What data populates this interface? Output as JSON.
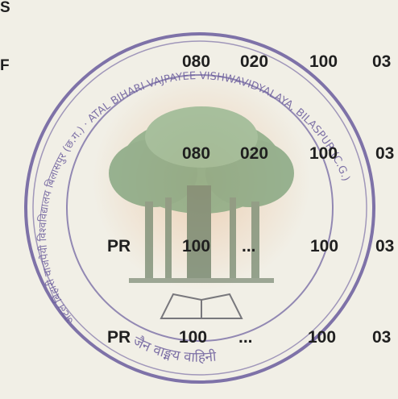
{
  "document": {
    "edge_marks": {
      "top_left": "S",
      "left": "F"
    },
    "rows": [
      {
        "col1": "",
        "col2": "080",
        "col3": "020",
        "col4": "100",
        "col5": "03"
      },
      {
        "col1": "",
        "col2": "080",
        "col3": "020",
        "col4": "100",
        "col5": "03"
      },
      {
        "col1": "PR",
        "col2": "100",
        "col3": "...",
        "col4": "100",
        "col5": "03"
      },
      {
        "col1": "PR",
        "col2": "100",
        "col3": "...",
        "col4": "100",
        "col5": "03"
      }
    ]
  },
  "seal": {
    "outer_text": "अटल बिहारी वाजपेयी विश्वविद्यालय बिलासपुर (छ.ग.) · ATAL BIHARI VAJPAYEE VISHWAVIDYALAYA, BILASPUR (C.G.)",
    "motto": "जैन वाङ्मय वाहिनी",
    "ink_color": "#6a5c9c",
    "tree_color": "#6f8f6a"
  }
}
